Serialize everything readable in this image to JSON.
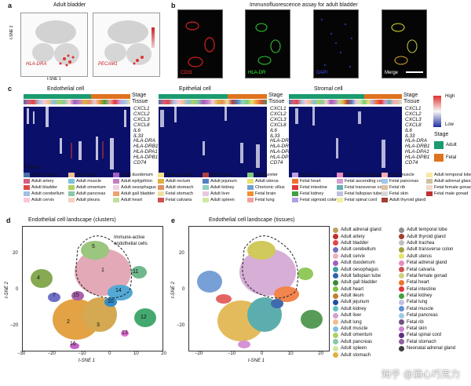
{
  "panel_a": {
    "letter": "a",
    "title": "Adult bladder",
    "ylabel": "t-SNE 2",
    "xlabel": "t-SNE 1",
    "gene1": "HLA-DRA",
    "gene2": "PECAM1"
  },
  "panel_b": {
    "letter": "b",
    "title": "Immunofluorescence assay for adult bladder",
    "channels": [
      {
        "label": "CD31",
        "color": "#ff3030"
      },
      {
        "label": "HLA-DR",
        "color": "#30ff30"
      },
      {
        "label": "DAPI",
        "color": "#4050ff"
      },
      {
        "label": "Merge",
        "color": "#ffffff"
      }
    ]
  },
  "panel_c": {
    "letter": "c",
    "groups": [
      "Endothelial cell",
      "Epithelial cell",
      "Stromal cell"
    ],
    "row_labels": [
      "Stage",
      "Tissue"
    ],
    "genes": [
      "CXCL1",
      "CXCL2",
      "CXCL3",
      "CXCL8",
      "IL6",
      "IL33",
      "HLA-DRA",
      "HLA-DRB1",
      "HLA-DPA1",
      "HLA-DPB1",
      "CD74"
    ],
    "scale_high": "High",
    "scale_low": "Low",
    "stage_title": "Stage",
    "stage": [
      {
        "label": "Adult",
        "color": "#1a9c6e"
      },
      {
        "label": "Fetal",
        "color": "#e0731d"
      }
    ],
    "tissue_title": "Tissue",
    "tissues": [
      {
        "label": "Adult adipose",
        "color": "#4a6fa5"
      },
      {
        "label": "Adult lung",
        "color": "#f0c090"
      },
      {
        "label": "Adult duodenum",
        "color": "#a060c0"
      },
      {
        "label": "Adult prostate",
        "color": "#f5e08a"
      },
      {
        "label": "Adult ileum",
        "color": "#b04040"
      },
      {
        "label": "Adult ureter",
        "color": "#7fc97f"
      },
      {
        "label": "Fetal eyes",
        "color": "#c0a0e0"
      },
      {
        "label": "Fetal adrenal gland",
        "color": "#e88ac0"
      },
      {
        "label": "Fetal muscle",
        "color": "#f4b0b8"
      },
      {
        "label": "Adult temporal lobe",
        "color": "#f7e7a0"
      },
      {
        "label": "Adult artery",
        "color": "#d06080"
      },
      {
        "label": "Adult muscle",
        "color": "#80c0e0"
      },
      {
        "label": "Adult epityphlon",
        "color": "#c080c0"
      },
      {
        "label": "Adult rectum",
        "color": "#e0b040"
      },
      {
        "label": "Adult jejunum",
        "color": "#5080c0"
      },
      {
        "label": "Adult uterus",
        "color": "#e8e070"
      },
      {
        "label": "Fetal heart",
        "color": "#f07030"
      },
      {
        "label": "Fetal ascending colon",
        "color": "#d0a0d0"
      },
      {
        "label": "Fetal pancreas",
        "color": "#a0c8e8"
      },
      {
        "label": "Adult adrenal gland",
        "color": "#d0c0a0"
      },
      {
        "label": "Adult bladder",
        "color": "#e04848"
      },
      {
        "label": "Adult omentum",
        "color": "#b0d060"
      },
      {
        "label": "Adult oesophagus",
        "color": "#f0d0e0"
      },
      {
        "label": "Adult stomach",
        "color": "#e09060"
      },
      {
        "label": "Adult kidney",
        "color": "#90d0c0"
      },
      {
        "label": "Chorionic villus",
        "color": "#70a0d0"
      },
      {
        "label": "Fetal intestine",
        "color": "#e03838"
      },
      {
        "label": "Fetal transverse colon",
        "color": "#60b0b0"
      },
      {
        "label": "Fetal rib",
        "color": "#e0c0a0"
      },
      {
        "label": "Fetal female gonad",
        "color": "#f0d8c8"
      },
      {
        "label": "Adult cerebellum",
        "color": "#a0c0e0"
      },
      {
        "label": "Adult pancreas",
        "color": "#88c8a8"
      },
      {
        "label": "Adult gall bladder",
        "color": "#f0a070"
      },
      {
        "label": "Fetal stomach",
        "color": "#f0e0a0"
      },
      {
        "label": "Adult liver",
        "color": "#e8c8e0"
      },
      {
        "label": "Fetal brain",
        "color": "#f09030"
      },
      {
        "label": "Fetal kidney",
        "color": "#40a040"
      },
      {
        "label": "Fetal fallopian tube",
        "color": "#c0c0e0"
      },
      {
        "label": "Fetal skin",
        "color": "#d8d8d8"
      },
      {
        "label": "Fetal male gonad",
        "color": "#c03030"
      },
      {
        "label": "Adult cervix",
        "color": "#f8c8d8"
      },
      {
        "label": "Adult pleura",
        "color": "#f8d0c0"
      },
      {
        "label": "Adult heart",
        "color": "#c0e0a0"
      },
      {
        "label": "Fetal calvaria",
        "color": "#d05050"
      },
      {
        "label": "Adult spleen",
        "color": "#d0e8a0"
      },
      {
        "label": "Fetal lung",
        "color": "#f0a0a0"
      },
      {
        "label": "Fetal sigmoid colon",
        "color": "#b0a0e0"
      },
      {
        "label": "Fetal spinal cord",
        "color": "#f0f0a0"
      },
      {
        "label": "Adult thyroid gland",
        "color": "#a04030"
      }
    ]
  },
  "panel_d": {
    "letter": "d",
    "title": "Endothelial cell landscape (clusters)",
    "annotation": "Immune-active\nendothelial cells",
    "xlabel": "t-SNE 1",
    "ylabel": "t-SNE 2",
    "xticks": [
      "−30",
      "−20",
      "−10",
      "0",
      "10",
      "20"
    ],
    "yticks": [
      "20",
      "0",
      "−20"
    ],
    "cluster_labels": [
      "1",
      "2",
      "3",
      "4",
      "5",
      "7",
      "10",
      "11",
      "12",
      "13",
      "14",
      "15",
      "16"
    ]
  },
  "panel_e": {
    "letter": "e",
    "title": "Endothelial cell landscape (tissues)",
    "xlabel": "t-SNE 1",
    "ylabel": "t-SNE 2",
    "xticks": [
      "−20",
      "−10",
      "0",
      "10",
      "20"
    ],
    "yticks": [
      "20",
      "0",
      "−20"
    ],
    "legend_col1": [
      {
        "label": "Adult adrenal gland",
        "color": "#c0a060"
      },
      {
        "label": "Adult artery",
        "color": "#c03030"
      },
      {
        "label": "Adult bladder",
        "color": "#e04848"
      },
      {
        "label": "Adult cerebellum",
        "color": "#7070c0"
      },
      {
        "label": "Adult cervix",
        "color": "#f0b0c0"
      },
      {
        "label": "Adult duodenum",
        "color": "#a060c0"
      },
      {
        "label": "Adult oesophagus",
        "color": "#40a0a0"
      },
      {
        "label": "Adult fallopian tube",
        "color": "#3060b0"
      },
      {
        "label": "Adult gall bladder",
        "color": "#3a8a3a"
      },
      {
        "label": "Adult heart",
        "color": "#80c040"
      },
      {
        "label": "Adult ileum",
        "color": "#c08030"
      },
      {
        "label": "Adult jejunum",
        "color": "#2050a0"
      },
      {
        "label": "Adult kidney",
        "color": "#60c0c0"
      },
      {
        "label": "Adult liver",
        "color": "#d0a0d0"
      },
      {
        "label": "Adult lung",
        "color": "#f0c090"
      },
      {
        "label": "Adult muscle",
        "color": "#80c0e0"
      },
      {
        "label": "Adult omentum",
        "color": "#b0d060"
      },
      {
        "label": "Adult pancreas",
        "color": "#88c8a8"
      },
      {
        "label": "Adult spleen",
        "color": "#d0e8a0"
      },
      {
        "label": "Adult stomach",
        "color": "#e0b040"
      }
    ],
    "legend_col2": [
      {
        "label": "Adult temporal lobe",
        "color": "#909090"
      },
      {
        "label": "Adult thyroid gland",
        "color": "#a04030"
      },
      {
        "label": "Adult trachea",
        "color": "#c0c0c0"
      },
      {
        "label": "Adult transverse colon",
        "color": "#a0a040"
      },
      {
        "label": "Adult uterus",
        "color": "#e8e070"
      },
      {
        "label": "Fetal adrenal gland",
        "color": "#e88ac0"
      },
      {
        "label": "Fetal calvaria",
        "color": "#d05050"
      },
      {
        "label": "Fetal female gonad",
        "color": "#d0d080"
      },
      {
        "label": "Fetal heart",
        "color": "#f07030"
      },
      {
        "label": "Fetal intestine",
        "color": "#e03838"
      },
      {
        "label": "Fetal kidney",
        "color": "#40a040"
      },
      {
        "label": "Fetal lung",
        "color": "#c0c0e0"
      },
      {
        "label": "Fetal muscle",
        "color": "#6090d0"
      },
      {
        "label": "Fetal pancreas",
        "color": "#a0c8e8"
      },
      {
        "label": "Fetal rib",
        "color": "#705080"
      },
      {
        "label": "Fetal skin",
        "color": "#d080d0"
      },
      {
        "label": "Fetal spinal cord",
        "color": "#603080"
      },
      {
        "label": "Fetal stomach",
        "color": "#9060a0"
      },
      {
        "label": "Neonatal adrenal gland",
        "color": "#404040"
      }
    ]
  },
  "watermark": "知乎 @酒心巧克力"
}
